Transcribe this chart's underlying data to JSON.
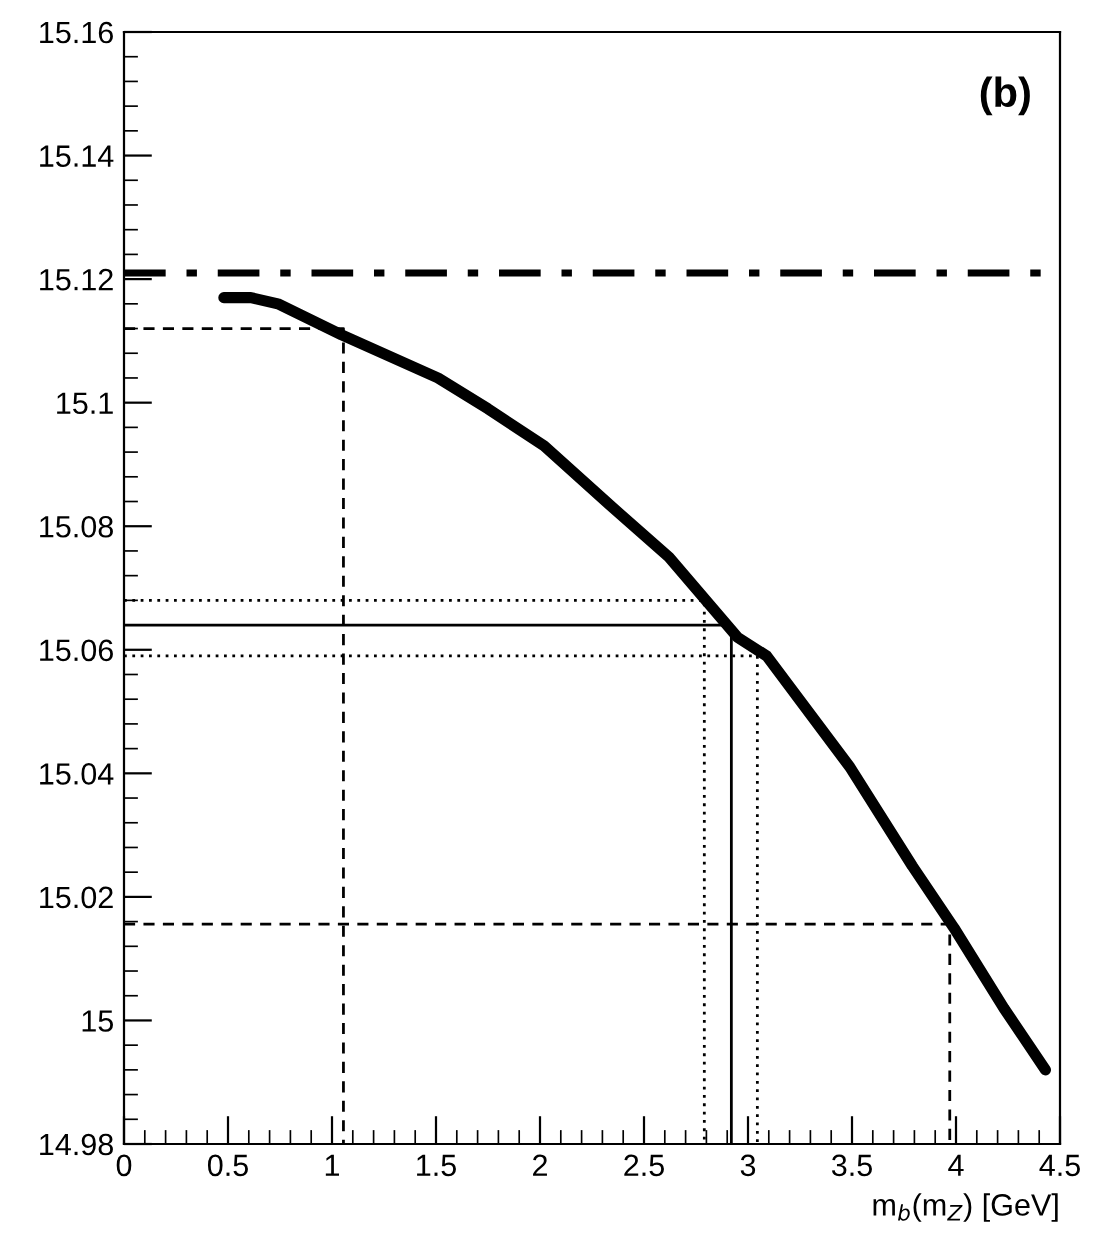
{
  "chart_data": {
    "type": "line",
    "xlabel": "m$_{b}$(m$_{Z}$) [GeV]",
    "annotations": [
      "(b)"
    ],
    "xlim": [
      0,
      4.5
    ],
    "ylim": [
      14.98,
      15.16
    ],
    "xticks": [
      0,
      0.5,
      1,
      1.5,
      2,
      2.5,
      3,
      3.5,
      4,
      4.5
    ],
    "yticks": [
      14.98,
      15,
      15.02,
      15.04,
      15.06,
      15.08,
      15.1,
      15.12,
      15.14,
      15.16
    ],
    "grid": false,
    "legend": false,
    "marker": "none",
    "series": [
      {
        "color": "#000000",
        "line_style": "solid",
        "x": [
          0.48,
          0.61,
          0.74,
          1.045,
          1.51,
          1.75,
          2.02,
          2.35,
          2.62,
          2.95,
          3.09,
          3.49,
          3.79,
          3.99,
          4.23,
          4.43
        ],
        "values": [
          15.117,
          15.117,
          15.116,
          15.111,
          15.104,
          15.099,
          15.093,
          15.083,
          15.075,
          15.062,
          15.059,
          15.041,
          15.025,
          15.015,
          15.002,
          14.992
        ]
      },
      {
        "color": "#000000",
        "line_style": "dashed",
        "x": [
          0,
          1.055,
          1.055
        ],
        "values": [
          15.112,
          15.112,
          14.98
        ]
      },
      {
        "color": "#000000",
        "line_style": "dashed",
        "x": [
          0,
          3.97,
          3.97
        ],
        "values": [
          15.0156,
          15.0156,
          14.98
        ]
      },
      {
        "color": "#000000",
        "line_style": "solid",
        "x": [
          0,
          2.92,
          2.92
        ],
        "values": [
          15.064,
          15.064,
          14.98
        ]
      },
      {
        "color": "#000000",
        "line_style": "dotted",
        "x": [
          0,
          2.79,
          2.79
        ],
        "values": [
          15.068,
          15.068,
          14.98
        ]
      },
      {
        "color": "#000000",
        "line_style": "dotted",
        "x": [
          0,
          3.045,
          3.045
        ],
        "values": [
          15.059,
          15.059,
          14.98
        ]
      }
    ],
    "ref_lines": [
      {
        "axis": "y",
        "value": 15.121,
        "line_style": "dashdot",
        "color": "#000000"
      }
    ]
  }
}
